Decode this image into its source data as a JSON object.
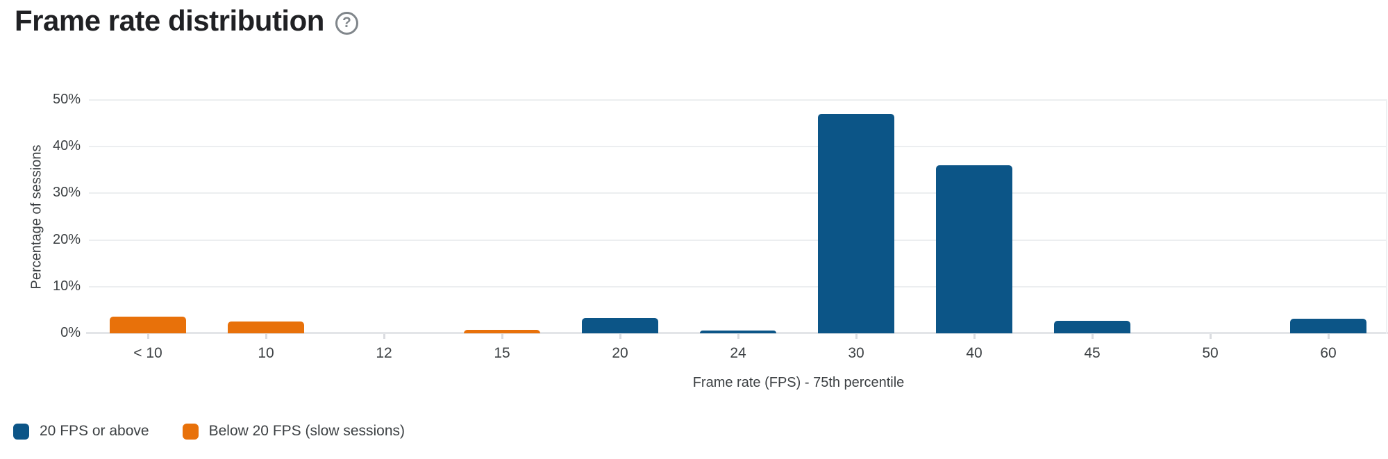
{
  "header": {
    "title": "Frame rate distribution",
    "help_icon_glyph": "?"
  },
  "chart_data": {
    "type": "bar",
    "title": "Frame rate distribution",
    "xlabel": "Frame rate (FPS) - 75th percentile",
    "ylabel": "Percentage of sessions",
    "ylim": [
      0,
      50
    ],
    "ytick_values": [
      0,
      10,
      20,
      30,
      40,
      50
    ],
    "ytick_labels": [
      "0%",
      "10%",
      "20%",
      "30%",
      "40%",
      "50%"
    ],
    "grid": true,
    "legend_position": "bottom-left",
    "categories": [
      "< 10",
      "10",
      "12",
      "15",
      "20",
      "24",
      "30",
      "40",
      "45",
      "50",
      "60"
    ],
    "series": [
      {
        "name": "20 FPS or above",
        "color": "#0c5587",
        "values": [
          0,
          0,
          0,
          0,
          3.2,
          0.6,
          47,
          36,
          2.7,
          0,
          3.1
        ]
      },
      {
        "name": "Below 20 FPS (slow sessions)",
        "color": "#e8710a",
        "values": [
          3.5,
          2.5,
          0,
          0.8,
          0,
          0,
          0,
          0,
          0,
          0,
          0
        ]
      }
    ]
  }
}
